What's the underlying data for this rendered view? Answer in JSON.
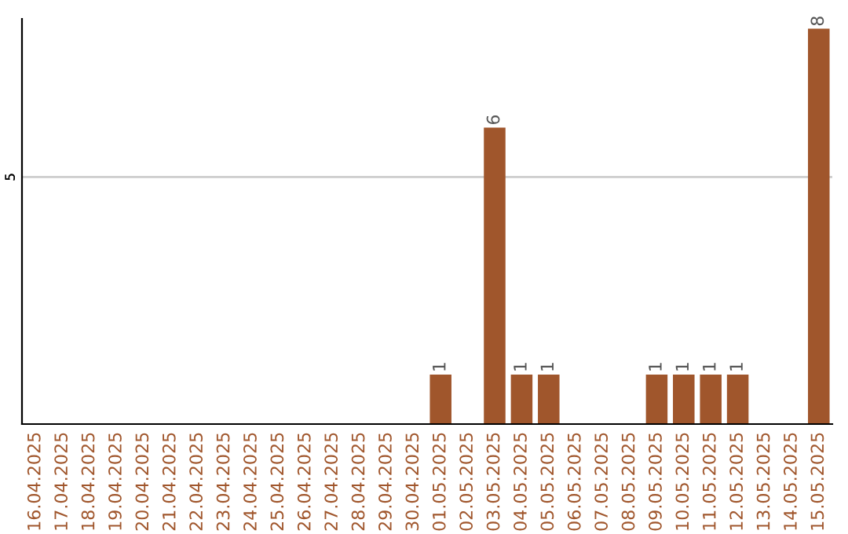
{
  "chart_data": {
    "type": "bar",
    "ylim": [
      0,
      8.2
    ],
    "categories": [
      "16.04.2025",
      "17.04.2025",
      "18.04.2025",
      "19.04.2025",
      "20.04.2025",
      "21.04.2025",
      "22.04.2025",
      "23.04.2025",
      "24.04.2025",
      "25.04.2025",
      "26.04.2025",
      "27.04.2025",
      "28.04.2025",
      "29.04.2025",
      "30.04.2025",
      "01.05.2025",
      "02.05.2025",
      "03.05.2025",
      "04.05.2025",
      "05.05.2025",
      "06.05.2025",
      "07.05.2025",
      "08.05.2025",
      "09.05.2025",
      "10.05.2025",
      "11.05.2025",
      "12.05.2025",
      "13.05.2025",
      "14.05.2025",
      "15.05.2025"
    ],
    "values": [
      null,
      null,
      null,
      null,
      null,
      null,
      null,
      null,
      null,
      null,
      null,
      null,
      null,
      null,
      null,
      1,
      null,
      6,
      1,
      1,
      null,
      null,
      null,
      1,
      1,
      1,
      1,
      null,
      null,
      8
    ],
    "data_labels": true,
    "color": "#a0562c",
    "ref_lines": [
      {
        "axis": "y",
        "value": 5,
        "label": "5",
        "color": "#cccccc"
      }
    ]
  }
}
